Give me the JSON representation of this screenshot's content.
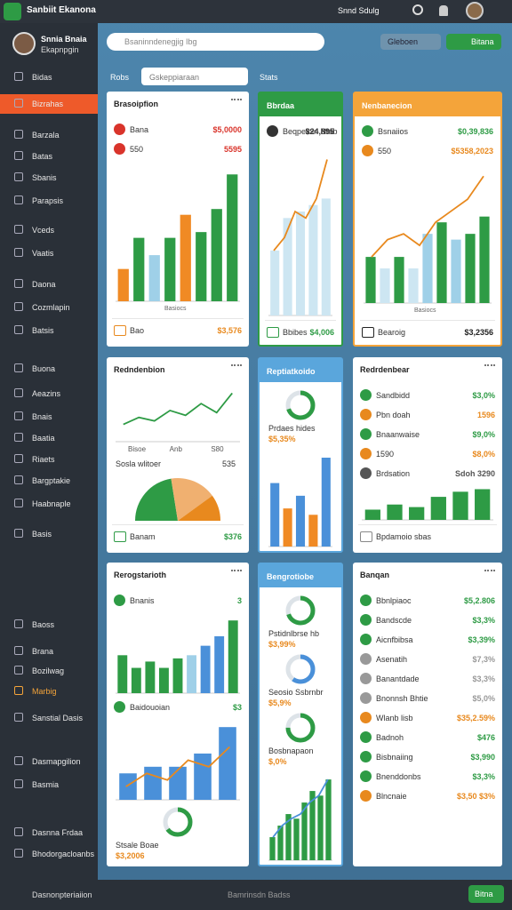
{
  "topbar": {
    "brand": "Sanbiit Ekanona",
    "user_menu": "Snnd Sdulg"
  },
  "sidebar": {
    "user": {
      "name": "Snnia Bnaia",
      "role": "Ekapnpgin"
    },
    "items": [
      {
        "label": "Bidas"
      },
      {
        "label": "Bizrahas",
        "active": true
      },
      {
        "label": "Barzala"
      },
      {
        "label": "Batas"
      },
      {
        "label": "Sbanis"
      },
      {
        "label": "Parapsis"
      },
      {
        "label": "Vceds"
      },
      {
        "label": "Vaatis"
      },
      {
        "label": "Daona"
      },
      {
        "label": "Cozmlapin"
      },
      {
        "label": "Batsis"
      },
      {
        "label": "Buona"
      },
      {
        "label": "Aeazins"
      },
      {
        "label": "Bnais"
      },
      {
        "label": "Baatia"
      },
      {
        "label": "Riaets"
      },
      {
        "label": "Bargptakie"
      },
      {
        "label": "Haabnaple"
      },
      {
        "label": "Basis"
      },
      {
        "label": "Baoss"
      },
      {
        "label": "Brana"
      },
      {
        "label": "Bozilwag"
      },
      {
        "label": "Marbig",
        "highlight": true
      },
      {
        "label": "Sanstial Dasis"
      },
      {
        "label": "Dasmapgilion"
      },
      {
        "label": "Basmia"
      },
      {
        "label": "Dasnna Frdaa"
      },
      {
        "label": "Bhodorgacloanbs"
      }
    ]
  },
  "toolbar": {
    "search": "Bsaninndenegjig Ibg",
    "dropdown": "Gleboen",
    "button": "Bitana",
    "tab": "Robs",
    "filter": "Gskeppiaraan",
    "stats": "Stats"
  },
  "cards": [
    {
      "title": "Brasoipfion",
      "sections": [
        {
          "label": "Bana",
          "value": "$5,0000",
          "color": "#d9342b"
        },
        {
          "label": "550",
          "value": "5595",
          "color": "#d9342b"
        },
        {
          "bars": [
            28,
            55,
            40,
            55,
            75,
            60,
            80,
            110
          ],
          "colors": [
            "#f08a24",
            "#2e9b45",
            "#9fd0e8",
            "#2e9b45",
            "#f08a24",
            "#2e9b45",
            "#2e9b45",
            "#2e9b45"
          ],
          "legend": "Basiocs"
        },
        {
          "label": "Bao",
          "value": "$3,576",
          "color": "#e8891e",
          "footer": true
        }
      ]
    },
    {
      "title": "Bbrdaa",
      "head": "#2e9b45",
      "sections": [
        {
          "label": "Beqpeloin Ntab",
          "value": "$24,895",
          "color": "#333333"
        },
        {
          "bars": [
            50,
            75,
            80,
            85,
            90
          ],
          "color": "#cde6f2",
          "line": [
            50,
            60,
            80,
            75,
            90,
            120
          ],
          "lineColor": "#e8891e"
        },
        {
          "label": "Bbibes",
          "value": "$4,006",
          "color": "#2e9b45",
          "footer": true
        }
      ]
    },
    {
      "title": "Nenbanecion",
      "head": "#f4a43a",
      "sections": [
        {
          "label": "Bsnaiios",
          "value": "$0,39,836",
          "color": "#2e9b45"
        },
        {
          "label": "550",
          "value": "$5358,2023",
          "color": "#e8891e"
        },
        {
          "bars": [
            40,
            30,
            40,
            30,
            60,
            70,
            55,
            60,
            75
          ],
          "colors": [
            "#2e9b45",
            "#cde6f2",
            "#2e9b45",
            "#cde6f2",
            "#9fd0e8",
            "#2e9b45",
            "#9fd0e8",
            "#2e9b45",
            "#2e9b45"
          ],
          "line": [
            40,
            55,
            60,
            50,
            70,
            80,
            90,
            110
          ],
          "lineColor": "#e8891e",
          "legend": "Basiocs"
        },
        {
          "label": "Bearoig",
          "value": "$3,2356",
          "color": "#222222",
          "footer": true
        }
      ]
    },
    {
      "title": "Redndenbion",
      "sections": [
        {
          "line": [
            25,
            35,
            30,
            45,
            38,
            55,
            42,
            70
          ],
          "lineColor": "#2e9b45",
          "labels": [
            "Bisoe",
            "Anb",
            "S80"
          ]
        },
        {
          "pie": [
            45,
            35,
            20
          ],
          "colors": [
            "#2e9b45",
            "#f0b070",
            "#e8891e"
          ],
          "label": "Sosla wlitoer",
          "value": "535"
        },
        {
          "label": "Banam",
          "value": "$376",
          "color": "#2e9b45",
          "footer": true
        }
      ]
    },
    {
      "title": "Reptiatkoido",
      "head": "#5aa6dc",
      "sections": [
        {
          "donut": 70,
          "color": "#2e9b45",
          "label": "Prdaes hides",
          "value": "$5,35%"
        },
        {
          "bars": [
            50,
            30,
            40,
            25,
            70
          ],
          "colors": [
            "#4a90d9",
            "#f08a24",
            "#4a90d9",
            "#f08a24",
            "#4a90d9"
          ]
        }
      ]
    },
    {
      "title": "Redrdenbear",
      "sections": [
        {
          "label": "Sandbidd",
          "value": "$3,0%",
          "color": "#2e9b45"
        },
        {
          "label": "Pbn doah",
          "value": "1596",
          "color": "#e8891e"
        },
        {
          "label": "Bnaanwaise",
          "value": "$9,0%",
          "color": "#2e9b45"
        },
        {
          "label": "1590",
          "value": "$8,0%",
          "color": "#e8891e"
        },
        {
          "label": "Brdsation",
          "value": "Sdoh 3290",
          "color": "#555555"
        },
        {
          "bars": [
            20,
            30,
            25,
            45,
            55,
            60
          ],
          "color": "#2e9b45"
        },
        {
          "label": "Bpdamoio sbas",
          "footer": true
        }
      ]
    },
    {
      "title": "Rerogstarioth",
      "sections": [
        {
          "label": "Bnanis",
          "value": "3",
          "color": "#2e9b45"
        },
        {
          "bars": [
            60,
            40,
            50,
            40,
            55,
            60,
            75,
            90,
            115
          ],
          "colors": [
            "#2e9b45",
            "#2e9b45",
            "#2e9b45",
            "#2e9b45",
            "#2e9b45",
            "#9fd0e8",
            "#4a90d9",
            "#4a90d9",
            "#2e9b45"
          ]
        },
        {
          "label": "Baidouoian",
          "value": "$3",
          "color": "#2e9b45"
        },
        {
          "bars": [
            20,
            25,
            25,
            35,
            55
          ],
          "color": "#4a90d9",
          "line": [
            10,
            20,
            15,
            30,
            25,
            40
          ],
          "lineColor": "#e8891e"
        },
        {
          "donut": 65,
          "color": "#2e9b45",
          "label": "Stsale Boae",
          "value": "$3,2006"
        }
      ]
    },
    {
      "title": "Bengrotiobe",
      "head": "#5aa6dc",
      "sections": [
        {
          "donut": 70,
          "color": "#2e9b45",
          "label": "Pstidnlbrse hb",
          "value": "$3,99%"
        },
        {
          "donut": 60,
          "color": "#4a90d9",
          "label": "Seosio Ssbrnbr",
          "value": "$5,9%"
        },
        {
          "donut": 75,
          "color": "#2e9b45",
          "label": "Bosbnapaon",
          "value": "$,0%"
        },
        {
          "bars": [
            10,
            15,
            20,
            18,
            25,
            30,
            28,
            35
          ],
          "color": "#2e9b45",
          "line": [
            10,
            15,
            18,
            20,
            25,
            28,
            35
          ],
          "lineColor": "#4a90d9"
        }
      ]
    },
    {
      "title": "Banqan",
      "sections": [
        {
          "label": "Bbnlpiaoc",
          "value": "$5,2.806",
          "color": "#2e9b45"
        },
        {
          "label": "Bandscde",
          "value": "$3,3%",
          "color": "#2e9b45"
        },
        {
          "label": "Aicnfbibsa",
          "value": "$3,39%",
          "color": "#2e9b45"
        },
        {
          "label": "Asenatih",
          "value": "$7,3%",
          "color": "#999999"
        },
        {
          "label": "Banantdade",
          "value": "$3,3%",
          "color": "#999999"
        },
        {
          "label": "Bnonnsh Bhtie",
          "value": "$5,0%",
          "color": "#999999"
        },
        {
          "label": "Wlanb lisb",
          "value": "$35,2.59%",
          "color": "#e8891e"
        },
        {
          "label": "Badnoh",
          "value": "$476",
          "color": "#2e9b45"
        },
        {
          "label": "Bisbnaiing",
          "value": "$3,990",
          "color": "#2e9b45"
        },
        {
          "label": "Bnenddonbs",
          "value": "$3,3%",
          "color": "#2e9b45"
        },
        {
          "label": "Blncnaie",
          "value": "$3,50 $3%",
          "color": "#e8891e"
        }
      ]
    }
  ],
  "bottombar": {
    "left": "Dasnonpteriaiion",
    "center": "Bamrinsdn Badss",
    "button": "Bitna"
  }
}
